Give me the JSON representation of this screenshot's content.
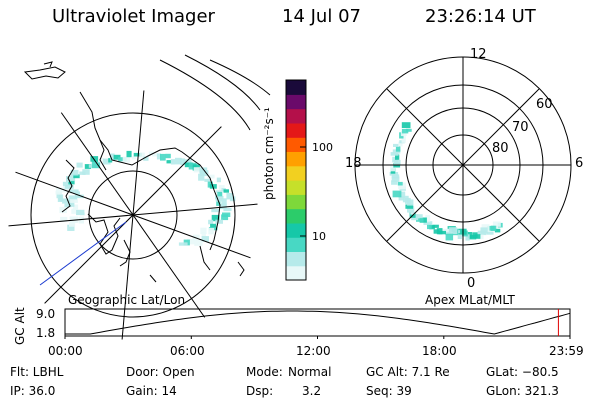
{
  "header": {
    "instrument": "Ultraviolet Imager",
    "date": "14 Jul 07",
    "time": "23:26:14 UT"
  },
  "colorbar": {
    "unit": "photon cm⁻²s⁻¹",
    "ticks": [
      {
        "value": 100,
        "label": "100"
      },
      {
        "value": 10,
        "label": "10"
      }
    ],
    "scale": "log",
    "colors": [
      "#e8f8f8",
      "#b6eaea",
      "#48d8c4",
      "#16c8a8",
      "#2ccc6a",
      "#7ed83a",
      "#c6e02a",
      "#f2d020",
      "#ffa000",
      "#ff5a00",
      "#e41818",
      "#b4104a",
      "#6a0a6a",
      "#1a0a3a"
    ]
  },
  "left_panel": {
    "label": "Geographic Lat/Lon",
    "projection": "geographic"
  },
  "right_panel": {
    "label": "Apex MLat/MLT",
    "mlt_labels": {
      "top": "12",
      "left": "18",
      "right": "6",
      "bottom": "0"
    },
    "lat_labels": [
      "60",
      "70",
      "80"
    ]
  },
  "altitude_plot": {
    "ylabel": "GC Alt",
    "y_ticks": [
      "9.0",
      "1.8"
    ],
    "x_ticks": [
      "00:00",
      "06:00",
      "12:00",
      "18:00",
      "23:59"
    ],
    "current_marker_time": "23:26"
  },
  "info": {
    "filter": "Flt: LBHL",
    "door": "Door: Open",
    "mode_label": "Mode:",
    "mode_value": "Normal",
    "gc_alt": "GC Alt: 7.1 Re",
    "glat": "GLat: −80.5",
    "ip": "IP: 36.0",
    "gain": "Gain: 14",
    "dsp_label": "Dsp:",
    "dsp_value": "3.2",
    "seq": "Seq: 39",
    "glon": "GLon: 321.3"
  }
}
